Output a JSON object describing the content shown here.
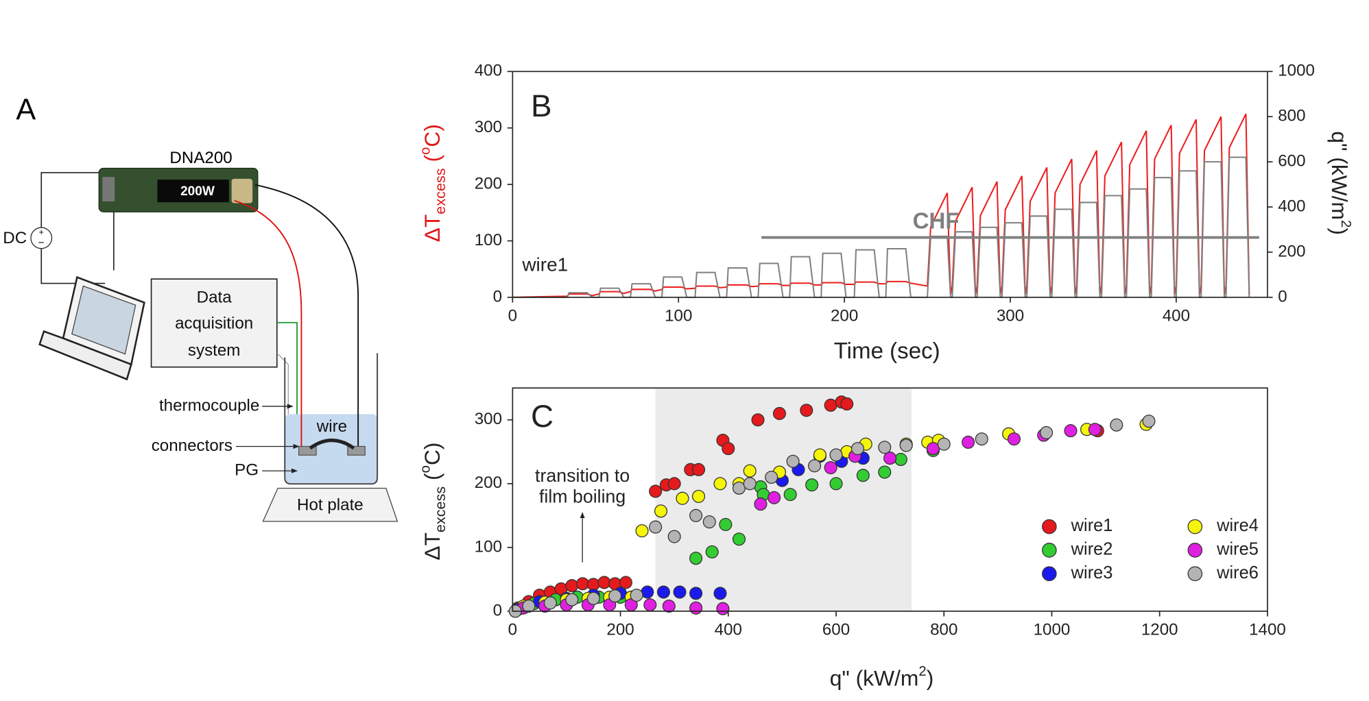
{
  "diagram": {
    "panel_label": "A",
    "device": "DNA200",
    "display": "200W",
    "source": "DC",
    "daq": [
      "Data",
      "acquisition",
      "system"
    ],
    "thermocouple": "thermocouple",
    "connectors": "connectors",
    "pg": "PG",
    "wire": "wire",
    "hot_plate": "Hot plate"
  },
  "chart_data": [
    {
      "type": "line",
      "panel_label": "B",
      "annotation": "wire1",
      "xlabel": "Time (sec)",
      "ylabel": [
        "ΔT",
        "excess",
        " (",
        "o",
        "C)"
      ],
      "y2label": [
        "q\" (kW/m",
        "2",
        ")"
      ],
      "xlim": [
        0,
        455
      ],
      "xticks": [
        0,
        100,
        200,
        300,
        400
      ],
      "ylim": [
        0,
        400
      ],
      "yticks": [
        0,
        100,
        200,
        300,
        400
      ],
      "y2lim": [
        0,
        1000
      ],
      "y2ticks": [
        0,
        200,
        400,
        600,
        800,
        1000
      ],
      "x": [
        0,
        33,
        34,
        45,
        48,
        52,
        53,
        64,
        67,
        71,
        72,
        83,
        86,
        90,
        91,
        102,
        105,
        110,
        111,
        122,
        125,
        129,
        130,
        141,
        144,
        148,
        149,
        160,
        163,
        167,
        168,
        179,
        182,
        186,
        187,
        198,
        201,
        206,
        207,
        218,
        221,
        225,
        226,
        237,
        240,
        250,
        252,
        262,
        264,
        265,
        267,
        277,
        279,
        280,
        282,
        292,
        294,
        295,
        297,
        307,
        309,
        310,
        312,
        322,
        324,
        325,
        327,
        337,
        339,
        340,
        342,
        352,
        354,
        355,
        357,
        367,
        369,
        370,
        372,
        382,
        384,
        385,
        387,
        397,
        399,
        400,
        402,
        412,
        414,
        415,
        417,
        427,
        429,
        430,
        432,
        442,
        444
      ],
      "series": [
        {
          "color": "#ee1c1c",
          "values": [
            0,
            2,
            6,
            6,
            3,
            6,
            10,
            10,
            7,
            10,
            14,
            14,
            11,
            14,
            18,
            18,
            15,
            16,
            20,
            20,
            17,
            18,
            22,
            22,
            19,
            20,
            24,
            24,
            21,
            21,
            25,
            25,
            22,
            22,
            26,
            26,
            23,
            23,
            27,
            27,
            24,
            24,
            28,
            28,
            25,
            20,
            125,
            185,
            5,
            20,
            135,
            195,
            5,
            20,
            145,
            205,
            5,
            20,
            155,
            215,
            5,
            20,
            170,
            230,
            5,
            20,
            185,
            245,
            5,
            20,
            200,
            260,
            5,
            20,
            215,
            275,
            5,
            20,
            235,
            295,
            5,
            20,
            245,
            305,
            5,
            20,
            255,
            315,
            5,
            20,
            260,
            320,
            5,
            20,
            265,
            325,
            5
          ]
        },
        {
          "color": "#808080",
          "axis": "y2",
          "values": [
            0,
            0,
            20,
            20,
            0,
            0,
            40,
            40,
            0,
            0,
            60,
            60,
            0,
            0,
            90,
            90,
            0,
            0,
            110,
            110,
            0,
            0,
            130,
            130,
            0,
            0,
            150,
            150,
            0,
            0,
            180,
            180,
            0,
            0,
            195,
            195,
            0,
            0,
            210,
            210,
            0,
            0,
            215,
            215,
            0,
            0,
            270,
            270,
            0,
            0,
            290,
            290,
            0,
            0,
            310,
            310,
            0,
            0,
            330,
            330,
            0,
            0,
            360,
            360,
            0,
            0,
            390,
            390,
            0,
            0,
            420,
            420,
            0,
            0,
            450,
            450,
            0,
            0,
            480,
            480,
            0,
            0,
            530,
            530,
            0,
            0,
            560,
            560,
            0,
            0,
            600,
            600,
            0,
            0,
            620,
            620,
            0
          ]
        }
      ],
      "reference_line": {
        "label": "CHF",
        "value": 265,
        "axis": "y2",
        "x_start": 150,
        "x_end": 450,
        "color": "#808080"
      }
    },
    {
      "type": "scatter",
      "panel_label": "C",
      "annotation": [
        "transition to",
        "film boiling"
      ],
      "xlabel": [
        "q\" (kW/m",
        "2",
        ")"
      ],
      "ylabel": [
        "ΔT",
        "excess",
        " (",
        "o",
        "C)"
      ],
      "xlim": [
        0,
        1400
      ],
      "xticks": [
        0,
        200,
        400,
        600,
        800,
        1000,
        1200,
        1400
      ],
      "ylim": [
        0,
        350
      ],
      "yticks": [
        0,
        100,
        200,
        300
      ],
      "highlight_xrange": [
        265,
        740
      ],
      "legend": "lower right",
      "series": [
        {
          "name": "wire1",
          "color": "#e41a1c",
          "x": [
            10,
            30,
            50,
            70,
            90,
            110,
            130,
            150,
            170,
            190,
            210,
            265,
            285,
            300,
            330,
            345,
            390,
            400,
            455,
            495,
            545,
            590,
            610,
            620,
            1085
          ],
          "values": [
            5,
            15,
            25,
            30,
            35,
            40,
            43,
            42,
            45,
            43,
            45,
            188,
            198,
            200,
            222,
            222,
            268,
            255,
            300,
            310,
            315,
            323,
            328,
            325,
            283
          ]
        },
        {
          "name": "wire2",
          "color": "#33cc33",
          "x": [
            10,
            40,
            80,
            120,
            160,
            200,
            340,
            370,
            395,
            420,
            460,
            465,
            515,
            555,
            600,
            650,
            690,
            720,
            780
          ],
          "values": [
            3,
            12,
            18,
            22,
            22,
            22,
            83,
            93,
            136,
            113,
            195,
            183,
            183,
            198,
            200,
            213,
            218,
            238,
            252
          ]
        },
        {
          "name": "wire3",
          "color": "#1a1aee",
          "x": [
            10,
            50,
            100,
            150,
            200,
            250,
            280,
            310,
            340,
            385,
            500,
            530,
            570,
            610,
            650
          ],
          "values": [
            3,
            15,
            20,
            25,
            28,
            30,
            30,
            30,
            28,
            28,
            205,
            222,
            243,
            235,
            240
          ]
        },
        {
          "name": "wire4",
          "color": "#f5f50a",
          "x": [
            20,
            60,
            100,
            140,
            180,
            220,
            240,
            275,
            315,
            345,
            385,
            420,
            440,
            495,
            570,
            620,
            655,
            730,
            770,
            790,
            920,
            1065,
            1175
          ],
          "values": [
            8,
            14,
            18,
            20,
            22,
            22,
            126,
            157,
            177,
            180,
            200,
            200,
            220,
            218,
            245,
            250,
            262,
            262,
            265,
            268,
            278,
            285,
            293
          ]
        },
        {
          "name": "wire5",
          "color": "#e020e0",
          "x": [
            20,
            60,
            100,
            140,
            180,
            220,
            255,
            290,
            340,
            390,
            460,
            485,
            590,
            635,
            700,
            780,
            845,
            930,
            985,
            1035,
            1080
          ],
          "values": [
            5,
            8,
            10,
            10,
            10,
            10,
            10,
            8,
            5,
            4,
            168,
            178,
            225,
            243,
            240,
            255,
            265,
            270,
            276,
            283,
            285
          ]
        },
        {
          "name": "wire6",
          "color": "#b4b4b4",
          "x": [
            5,
            30,
            70,
            110,
            150,
            190,
            230,
            265,
            300,
            340,
            365,
            420,
            440,
            480,
            520,
            560,
            600,
            640,
            690,
            730,
            800,
            870,
            990,
            1120,
            1180
          ],
          "values": [
            0,
            8,
            13,
            18,
            20,
            24,
            25,
            132,
            117,
            150,
            140,
            193,
            200,
            210,
            235,
            228,
            245,
            255,
            257,
            260,
            262,
            270,
            280,
            292,
            298
          ]
        }
      ]
    }
  ]
}
